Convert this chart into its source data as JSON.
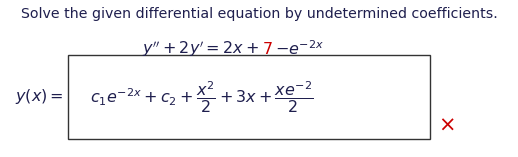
{
  "title": "Solve the given differential equation by undetermined coefficients.",
  "background": "#ffffff",
  "title_color": "#1f1f4e",
  "text_color": "#1f1f4e",
  "red_color": "#cc0000",
  "box_color": "#333333",
  "fig_width": 5.18,
  "fig_height": 1.57,
  "dpi": 100
}
